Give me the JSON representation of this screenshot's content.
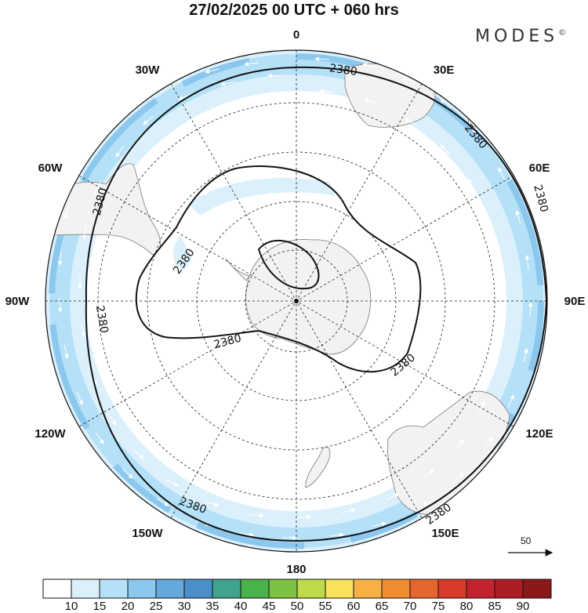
{
  "title": "27/02/2025  00 UTC  + 060 hrs",
  "brand": "MODES",
  "brand_mark": "©",
  "longitude_labels": [
    "0",
    "30E",
    "60E",
    "90E",
    "120E",
    "150E",
    "180",
    "150W",
    "120W",
    "90W",
    "60W",
    "30W"
  ],
  "contour_value": "2380",
  "vector_reference": "50",
  "colorbar": {
    "labels": [
      "10",
      "15",
      "20",
      "25",
      "30",
      "35",
      "40",
      "45",
      "50",
      "55",
      "60",
      "65",
      "70",
      "75",
      "80",
      "85",
      "90"
    ],
    "colors": [
      "#ffffff",
      "#dcf0fc",
      "#b4e1f8",
      "#8cc8ee",
      "#64a8dc",
      "#4a8fc8",
      "#3fa38f",
      "#4ab24a",
      "#7cc242",
      "#bed94a",
      "#fae15a",
      "#f7b045",
      "#f08c32",
      "#e6642d",
      "#d73c2d",
      "#c3232d",
      "#aa1e23",
      "#8c1919"
    ]
  }
}
